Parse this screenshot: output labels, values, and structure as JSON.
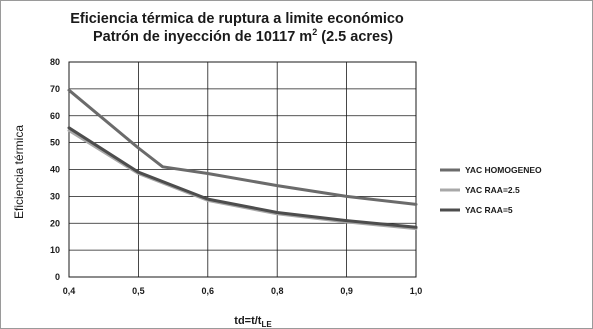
{
  "chart_data": {
    "type": "line",
    "title_line1": "Eficiencia térmica de ruptura a limite económico",
    "title_line2_main": "Patrón de inyección de 10117 m",
    "title_line2_sup": "2",
    "title_line2_end": " (2.5 acres)",
    "ylabel": "Eficiencia térmica",
    "xlabel_main": "td=t/t",
    "xlabel_sub": "LE",
    "categories": [
      "0,4",
      "0,5",
      "0,6",
      "0,8",
      "0,9",
      "1,0"
    ],
    "ylim": [
      0,
      80
    ],
    "yticks": [
      "0",
      "10",
      "20",
      "30",
      "40",
      "50",
      "60",
      "70",
      "80"
    ],
    "grid": true,
    "legend_position": "right",
    "series": [
      {
        "name": "YAC HOMOGENEO",
        "color": "#6b6b6b",
        "points": [
          [
            0,
            69.5
          ],
          [
            1,
            48
          ],
          [
            1.35,
            41
          ],
          [
            2,
            38.5
          ],
          [
            3,
            34
          ],
          [
            4,
            30
          ],
          [
            5,
            27
          ]
        ]
      },
      {
        "name": "YAC RAA=2.5",
        "color": "#a8a8a8",
        "points": [
          [
            0,
            54.5
          ],
          [
            1,
            38.5
          ],
          [
            2,
            28.5
          ],
          [
            3,
            23.5
          ],
          [
            4,
            20.5
          ],
          [
            5,
            18
          ]
        ]
      },
      {
        "name": "YAC RAA=5",
        "color": "#4d4d4d",
        "points": [
          [
            0,
            55.5
          ],
          [
            1,
            39
          ],
          [
            2,
            29
          ],
          [
            3,
            24
          ],
          [
            4,
            21
          ],
          [
            5,
            18.5
          ]
        ]
      }
    ]
  }
}
